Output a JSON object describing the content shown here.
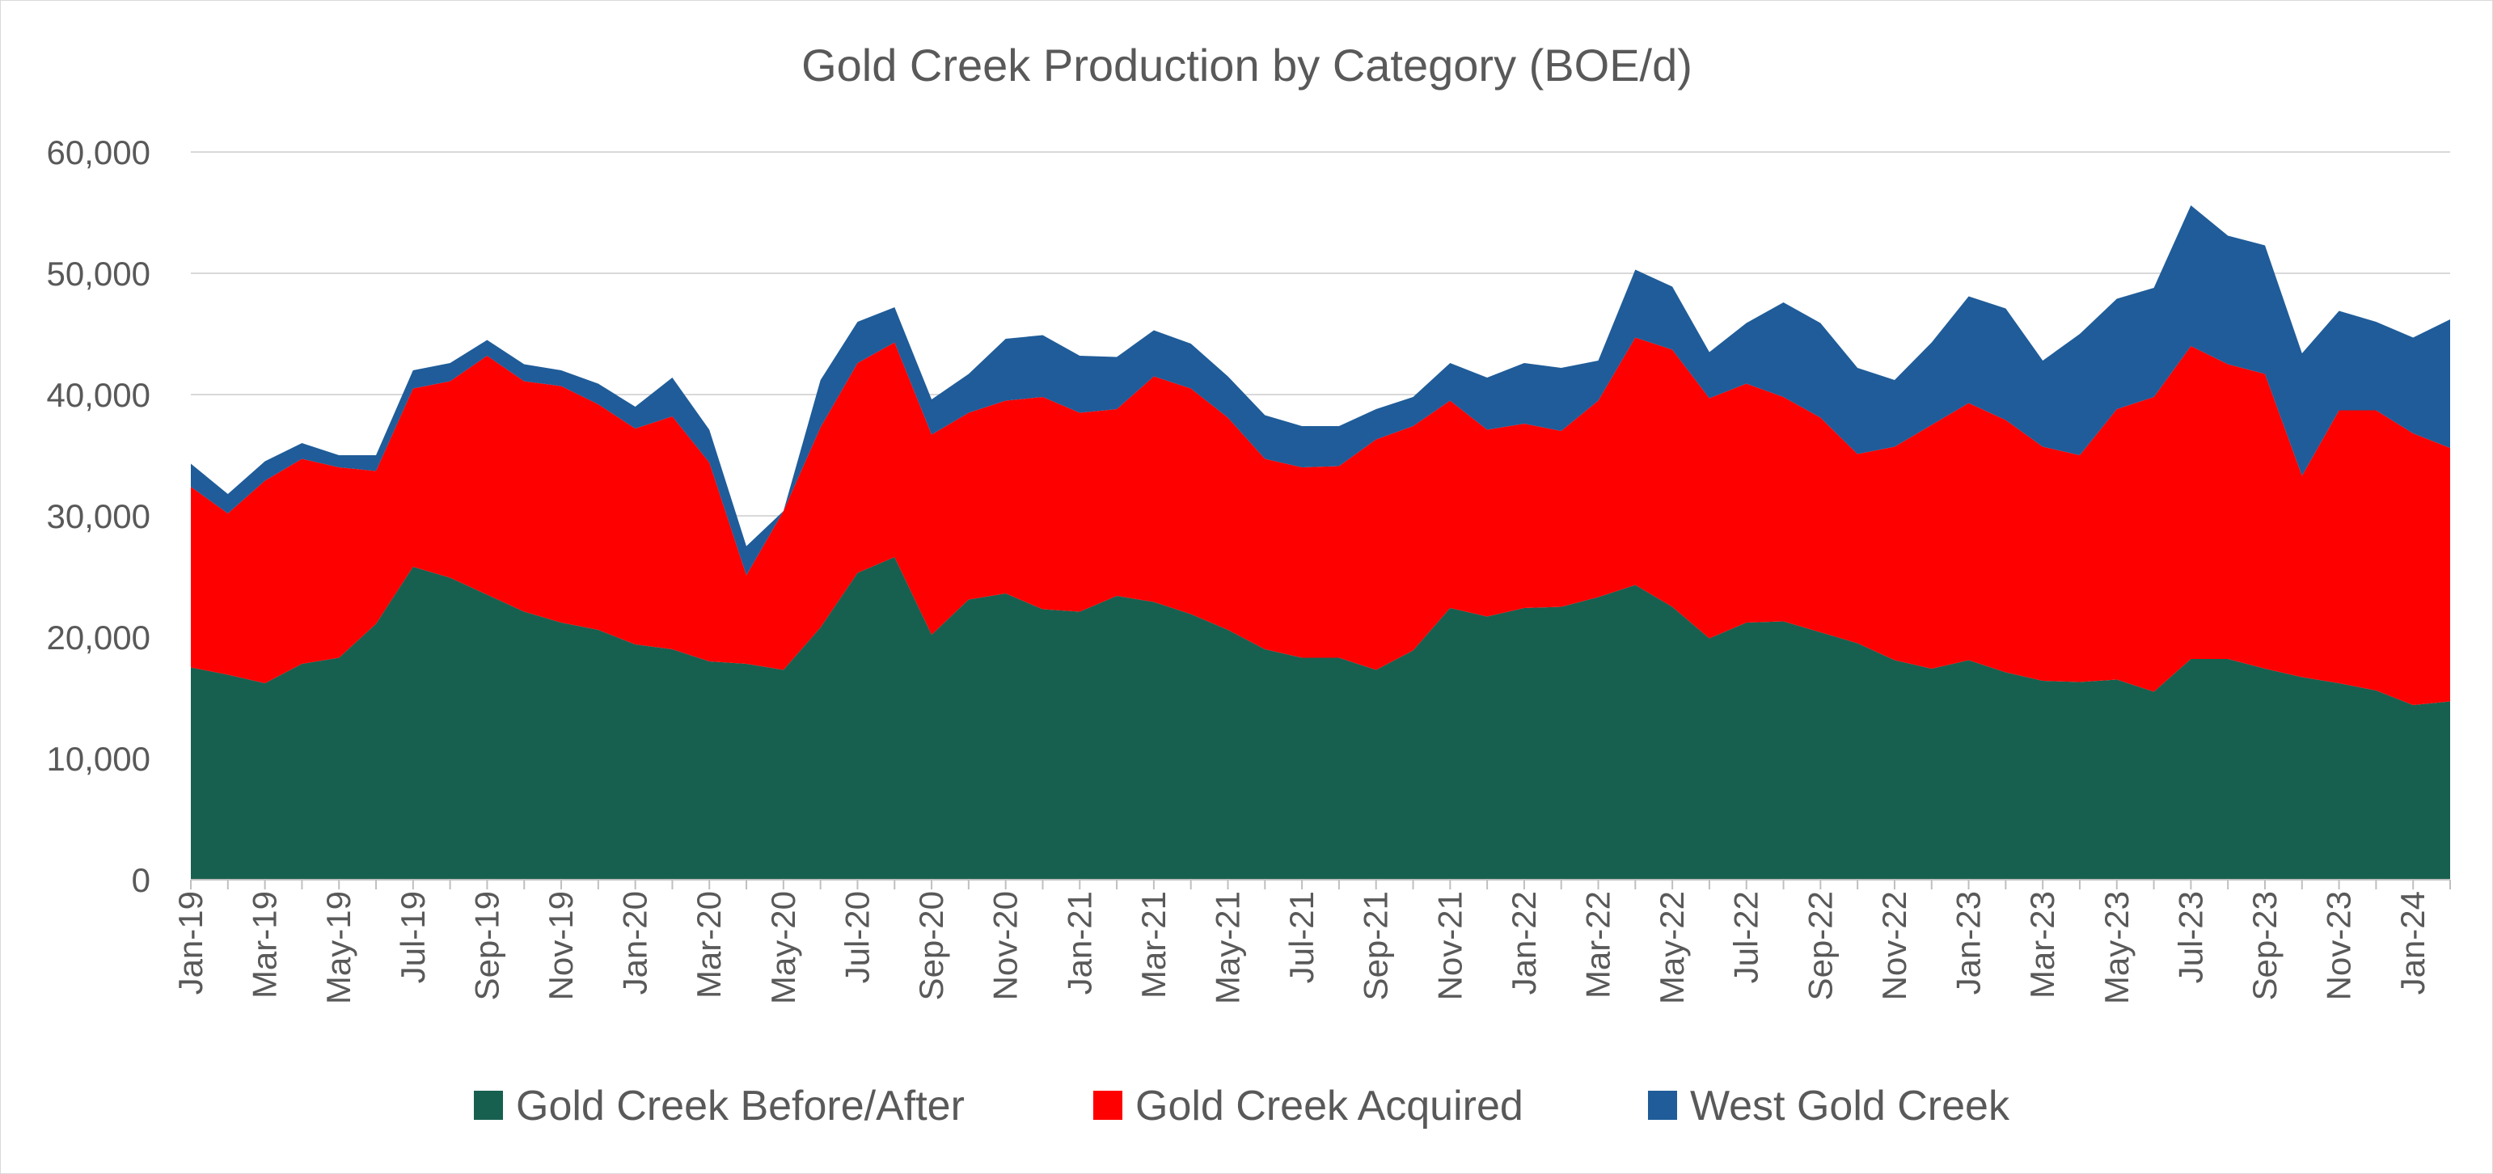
{
  "chart_data": {
    "type": "area",
    "stacked": true,
    "title": "Gold Creek Production by Category (BOE/d)",
    "xlabel": "",
    "ylabel": "",
    "ylim": [
      0,
      60000
    ],
    "yticks": [
      0,
      10000,
      20000,
      30000,
      40000,
      50000,
      60000
    ],
    "ytick_labels": [
      "0",
      "10,000",
      "20,000",
      "30,000",
      "40,000",
      "50,000",
      "60,000"
    ],
    "grid": true,
    "legend_position": "bottom",
    "x": [
      "Jan-19",
      "Feb-19",
      "Mar-19",
      "Apr-19",
      "May-19",
      "Jun-19",
      "Jul-19",
      "Aug-19",
      "Sep-19",
      "Oct-19",
      "Nov-19",
      "Dec-19",
      "Jan-20",
      "Feb-20",
      "Mar-20",
      "Apr-20",
      "May-20",
      "Jun-20",
      "Jul-20",
      "Aug-20",
      "Sep-20",
      "Oct-20",
      "Nov-20",
      "Dec-20",
      "Jan-21",
      "Feb-21",
      "Mar-21",
      "Apr-21",
      "May-21",
      "Jun-21",
      "Jul-21",
      "Aug-21",
      "Sep-21",
      "Oct-21",
      "Nov-21",
      "Dec-21",
      "Jan-22",
      "Feb-22",
      "Mar-22",
      "Apr-22",
      "May-22",
      "Jun-22",
      "Jul-22",
      "Aug-22",
      "Sep-22",
      "Oct-22",
      "Nov-22",
      "Dec-22",
      "Jan-23",
      "Feb-23",
      "Mar-23",
      "Apr-23",
      "May-23",
      "Jun-23",
      "Jul-23",
      "Aug-23",
      "Sep-23",
      "Oct-23",
      "Nov-23",
      "Dec-23",
      "Jan-24",
      "Feb-24"
    ],
    "xtick_labels": [
      "Jan-19",
      "Mar-19",
      "May-19",
      "Jul-19",
      "Sep-19",
      "Nov-19",
      "Jan-20",
      "Mar-20",
      "May-20",
      "Jul-20",
      "Sep-20",
      "Nov-20",
      "Jan-21",
      "Mar-21",
      "May-21",
      "Jul-21",
      "Sep-21",
      "Nov-21",
      "Jan-22",
      "Mar-22",
      "May-22",
      "Jul-22",
      "Sep-22",
      "Nov-22",
      "Jan-23",
      "Mar-23",
      "May-23",
      "Jul-23",
      "Sep-23",
      "Nov-23",
      "Jan-24"
    ],
    "series": [
      {
        "name": "Gold Creek Before/After",
        "color": "#17604f",
        "values": [
          17500,
          16900,
          16200,
          17800,
          18300,
          21100,
          25800,
          24900,
          23500,
          22100,
          21200,
          20600,
          19400,
          19000,
          18000,
          17800,
          17300,
          20800,
          25300,
          26600,
          20200,
          23100,
          23600,
          22300,
          22100,
          23400,
          22900,
          21900,
          20600,
          19000,
          18300,
          18300,
          17300,
          18900,
          22400,
          21700,
          22400,
          22500,
          23300,
          24300,
          22500,
          19900,
          21200,
          21300,
          20400,
          19500,
          18100,
          17400,
          18100,
          17100,
          16400,
          16300,
          16500,
          15500,
          18200,
          18200,
          17400,
          16700,
          16200,
          15600,
          14400,
          14700
        ]
      },
      {
        "name": "Gold Creek Acquired",
        "color": "#ff0000",
        "values": [
          14900,
          13300,
          16700,
          16900,
          15700,
          12600,
          14700,
          16200,
          19700,
          19000,
          19500,
          18600,
          17800,
          19200,
          16400,
          7300,
          13100,
          16500,
          17300,
          17700,
          16500,
          15400,
          15900,
          17500,
          16400,
          15400,
          18600,
          18600,
          17500,
          15700,
          15700,
          15800,
          19000,
          18500,
          17100,
          15400,
          15200,
          14500,
          16200,
          20400,
          21200,
          19800,
          19700,
          18500,
          17700,
          15600,
          17600,
          20100,
          21200,
          20800,
          19300,
          18700,
          22300,
          24300,
          25800,
          24300,
          24300,
          16600,
          22500,
          23100,
          22400,
          20900
        ]
      },
      {
        "name": "West Gold Creek",
        "color": "#1f5c99",
        "values": [
          1900,
          1600,
          1600,
          1300,
          1000,
          1300,
          1500,
          1500,
          1300,
          1400,
          1300,
          1700,
          1800,
          3200,
          2700,
          2400,
          0,
          3900,
          3400,
          2900,
          2900,
          3200,
          5100,
          5100,
          4700,
          4300,
          3800,
          3700,
          3400,
          3600,
          3400,
          3300,
          2500,
          2400,
          3100,
          4300,
          5000,
          5200,
          3300,
          5600,
          5200,
          3800,
          5000,
          7800,
          7800,
          7100,
          5500,
          6800,
          8800,
          9200,
          7100,
          10000,
          9100,
          9000,
          11600,
          10600,
          10600,
          10100,
          8200,
          7300,
          7900,
          10600
        ]
      }
    ]
  }
}
